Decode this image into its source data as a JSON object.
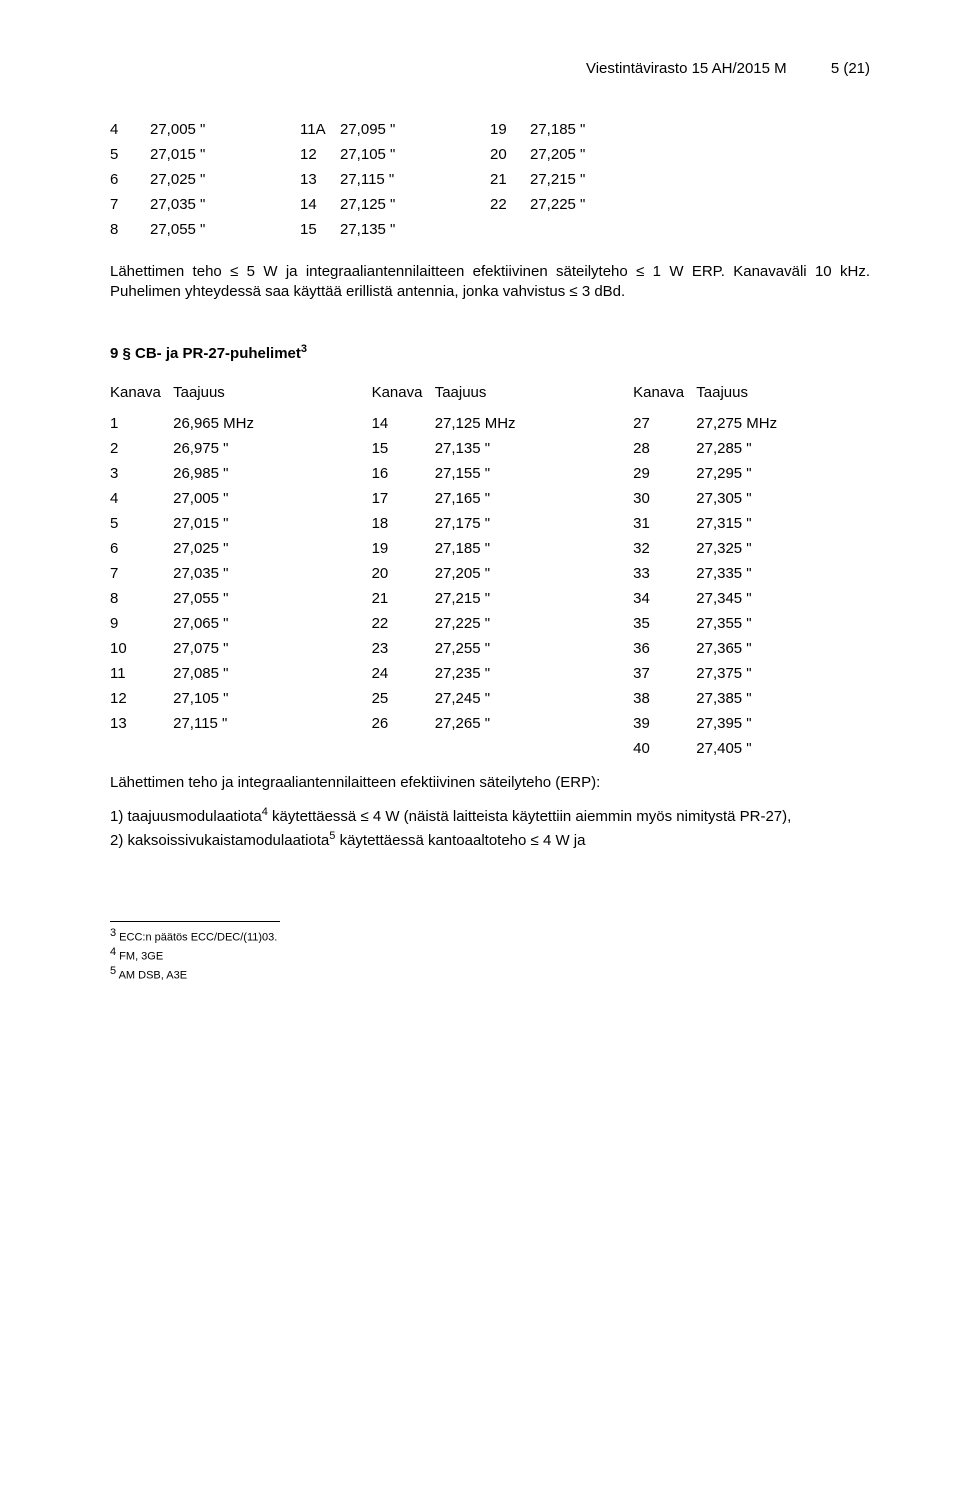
{
  "header": {
    "doc": "Viestintävirasto 15 AH/2015 M",
    "page": "5 (21)"
  },
  "table1": {
    "rows": [
      [
        "4",
        "27,005 \"",
        "11A",
        "27,095 \"",
        "19",
        "27,185 \""
      ],
      [
        "5",
        "27,015 \"",
        "12",
        "27,105 \"",
        "20",
        "27,205 \""
      ],
      [
        "6",
        "27,025 \"",
        "13",
        "27,115 \"",
        "21",
        "27,215 \""
      ],
      [
        "7",
        "27,035 \"",
        "14",
        "27,125 \"",
        "22",
        "27,225 \""
      ],
      [
        "8",
        "27,055 \"",
        "15",
        "27,135 \"",
        "",
        ""
      ]
    ]
  },
  "para1": "Lähettimen teho ≤ 5 W ja integraaliantennilaitteen efektiivinen säteilyteho ≤ 1 W ERP. Kanavaväli 10 kHz. Puhelimen yhteydessä saa käyttää erillistä antennia, jonka vahvistus ≤ 3 dBd.",
  "section": {
    "title_pre": "9 § CB- ja PR-27-puhelimet",
    "sup": "3"
  },
  "table2": {
    "headers": [
      "Kanava",
      "Taajuus",
      "Kanava",
      "Taajuus",
      "Kanava",
      "Taajuus"
    ],
    "rows": [
      [
        "1",
        "26,965 MHz",
        "14",
        "27,125 MHz",
        "27",
        "27,275 MHz"
      ],
      [
        "2",
        "26,975 \"",
        "15",
        "27,135 \"",
        "28",
        "27,285 \""
      ],
      [
        "3",
        "26,985 \"",
        "16",
        "27,155 \"",
        "29",
        "27,295 \""
      ],
      [
        "4",
        "27,005 \"",
        "17",
        "27,165 \"",
        "30",
        "27,305 \""
      ],
      [
        "5",
        "27,015 \"",
        "18",
        "27,175 \"",
        "31",
        "27,315 \""
      ],
      [
        "6",
        "27,025 \"",
        "19",
        "27,185 \"",
        "32",
        "27,325 \""
      ],
      [
        "7",
        "27,035 \"",
        "20",
        "27,205 \"",
        "33",
        "27,335 \""
      ],
      [
        "8",
        "27,055 \"",
        "21",
        "27,215 \"",
        "34",
        "27,345 \""
      ],
      [
        "9",
        "27,065 \"",
        "22",
        "27,225 \"",
        "35",
        "27,355 \""
      ],
      [
        "10",
        "27,075 \"",
        "23",
        "27,255 \"",
        "36",
        "27,365 \""
      ],
      [
        "11",
        "27,085 \"",
        "24",
        "27,235 \"",
        "37",
        "27,375 \""
      ],
      [
        "12",
        "27,105 \"",
        "25",
        "27,245 \"",
        "38",
        "27,385 \""
      ],
      [
        "13",
        "27,115 \"",
        "26",
        "27,265 \"",
        "39",
        "27,395 \""
      ],
      [
        "",
        "",
        "",
        "",
        "40",
        "27,405 \""
      ]
    ]
  },
  "para2": "Lähettimen teho ja integraaliantennilaitteen efektiivinen säteilyteho (ERP):",
  "list1": {
    "pre": "1) taajuusmodulaatiota",
    "sup": "4",
    "post": " käytettäessä ≤ 4 W (näistä laitteista käytettiin aiemmin myös nimitystä PR-27),"
  },
  "list2": {
    "pre": "2) kaksoissivukaistamodulaatiota",
    "sup": "5",
    "post": " käytettäessä kantoaaltoteho ≤ 4 W ja"
  },
  "footnotes": {
    "f3": {
      "num": "3",
      "text": " ECC:n päätös ECC/DEC/(11)03."
    },
    "f4": {
      "num": "4",
      "text": " FM, 3GE"
    },
    "f5": {
      "num": "5",
      "text": " AM DSB, A3E"
    }
  }
}
